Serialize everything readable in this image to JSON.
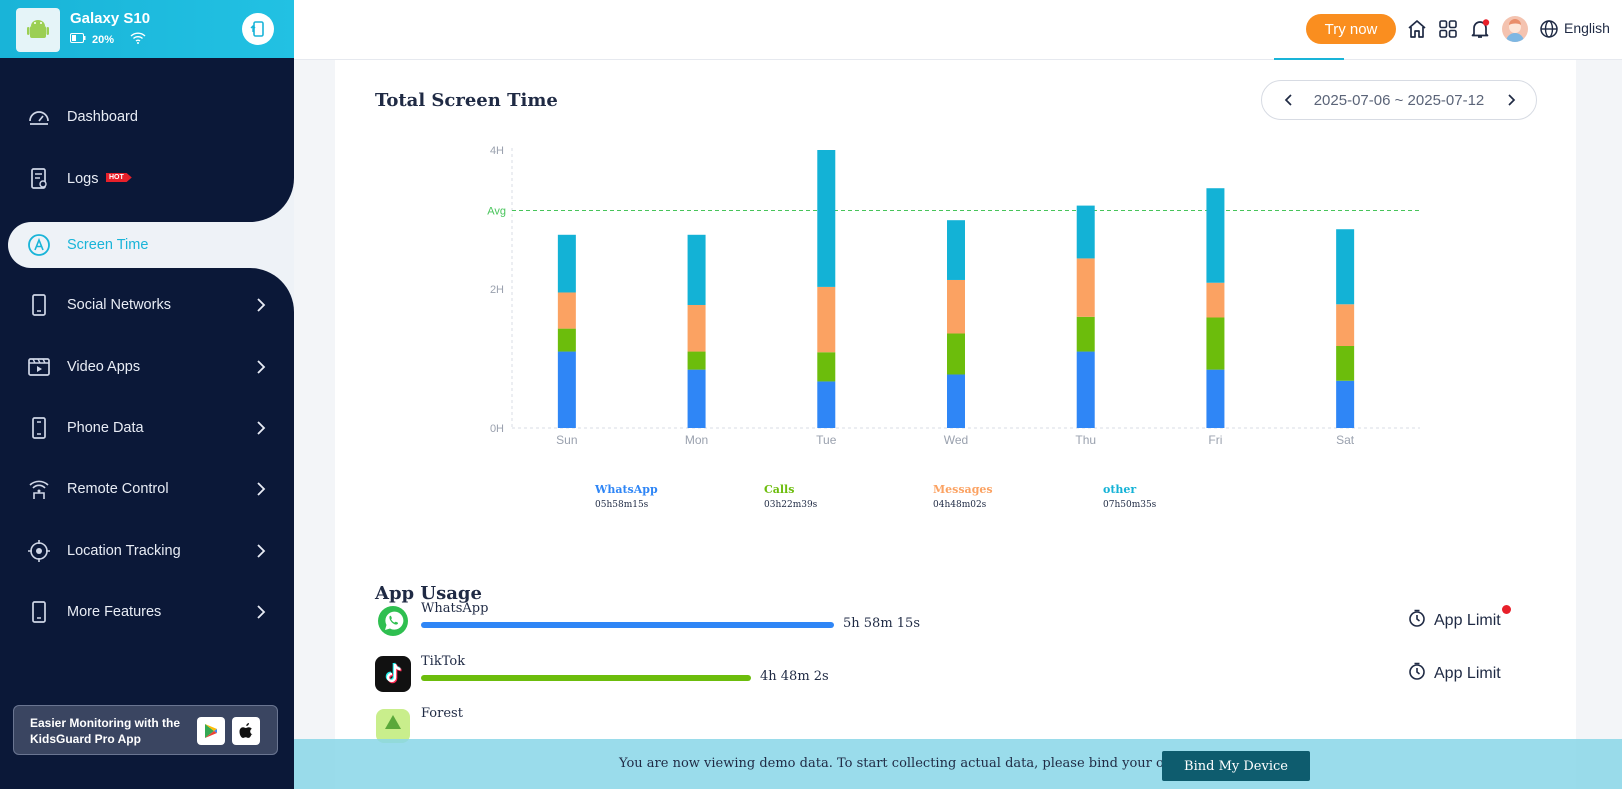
{
  "device": {
    "name": "Galaxy S10",
    "battery": "20%"
  },
  "nav": {
    "items": [
      {
        "label": "Dashboard",
        "icon": "dashboard-icon",
        "has_children": false
      },
      {
        "label": "Logs",
        "icon": "logs-icon",
        "has_children": false,
        "badge": "HOT"
      },
      {
        "label": "Screen Time",
        "icon": "screen-time-icon",
        "has_children": false,
        "active": true
      },
      {
        "label": "Social Networks",
        "icon": "social-networks-icon",
        "has_children": true
      },
      {
        "label": "Video Apps",
        "icon": "video-apps-icon",
        "has_children": true
      },
      {
        "label": "Phone Data",
        "icon": "phone-data-icon",
        "has_children": true
      },
      {
        "label": "Remote Control",
        "icon": "remote-control-icon",
        "has_children": true
      },
      {
        "label": "Location Tracking",
        "icon": "location-tracking-icon",
        "has_children": true
      },
      {
        "label": "More Features",
        "icon": "more-features-icon",
        "has_children": true
      }
    ]
  },
  "promo": {
    "text": "Easier Monitoring with the KidsGuard Pro App"
  },
  "topbar": {
    "try_now": "Try now",
    "language": "English"
  },
  "screen_time": {
    "title": "Total Screen Time",
    "date_range": "2025-07-06 ~ 2025-07-12"
  },
  "chart_data": {
    "type": "bar",
    "stacked": true,
    "categories": [
      "Sun",
      "Mon",
      "Tue",
      "Wed",
      "Thu",
      "Fri",
      "Sat"
    ],
    "y_ticks": [
      "0H",
      "2H",
      "4H"
    ],
    "avg_label": "Avg",
    "avg_value": 3.13,
    "ylim": [
      0,
      4
    ],
    "series": [
      {
        "name": "WhatsApp",
        "total": "05h58m15s",
        "color": "#2f86f6",
        "values": [
          1.1,
          0.84,
          0.67,
          0.77,
          1.1,
          0.84,
          0.68
        ]
      },
      {
        "name": "Calls",
        "total": "03h22m39s",
        "color": "#6cbd0c",
        "values": [
          0.33,
          0.26,
          0.42,
          0.59,
          0.5,
          0.75,
          0.5
        ]
      },
      {
        "name": "Messages",
        "total": "04h48m02s",
        "color": "#fba262",
        "values": [
          0.52,
          0.67,
          0.94,
          0.77,
          0.84,
          0.5,
          0.6
        ]
      },
      {
        "name": "other",
        "total": "07h50m35s",
        "color": "#13b2d6",
        "values": [
          0.83,
          1.01,
          1.97,
          0.86,
          0.76,
          1.36,
          1.08
        ]
      }
    ],
    "grid": false,
    "legend": "bottom"
  },
  "app_usage": {
    "title": "App Usage",
    "limit_label": "App Limit",
    "apps": [
      {
        "name": "WhatsApp",
        "time": "5h 58m 15s",
        "fraction": 1.0,
        "color": "#2f86f6",
        "icon": "whatsapp-icon",
        "notify": true
      },
      {
        "name": "TikTok",
        "time": "4h 48m 2s",
        "fraction": 0.8,
        "color": "#6cbd0c",
        "icon": "tiktok-icon",
        "notify": false
      },
      {
        "name": "Forest",
        "icon": "forest-icon"
      }
    ]
  },
  "demo": {
    "text": "You are now viewing demo data. To start collecting actual data, please bind your own device",
    "button": "Bind My Device"
  }
}
